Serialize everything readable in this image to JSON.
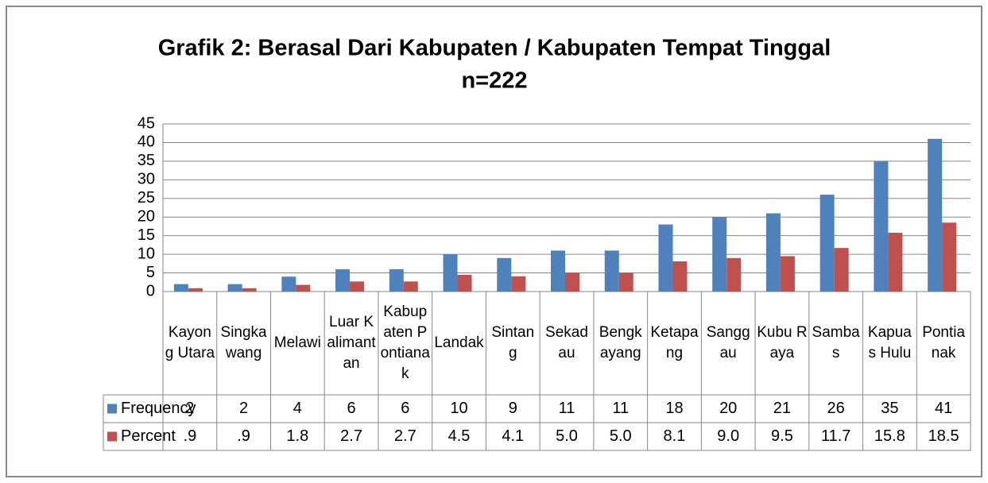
{
  "chart_data": {
    "type": "bar",
    "title": "Grafik 2: Berasal Dari Kabupaten / Kabupaten Tempat Tinggal",
    "subtitle": "n=222",
    "categories": [
      "Kayong Utara",
      "Singkawang",
      "Melawi",
      "Luar Kalimantan",
      "Kabupaten Pontianak",
      "Landak",
      "Sintang",
      "Sekadau",
      "Bengkayang",
      "Ketapang",
      "Sanggau",
      "Kubu Raya",
      "Sambas",
      "Kapuas Hulu",
      "Pontianak"
    ],
    "series": [
      {
        "name": "Frequency",
        "color": "#4f81bd",
        "values": [
          2,
          2,
          4,
          6,
          6,
          10,
          9,
          11,
          11,
          18,
          20,
          21,
          26,
          35,
          41
        ]
      },
      {
        "name": "Percent",
        "color": "#c0504d",
        "values": [
          0.9,
          0.9,
          1.8,
          2.7,
          2.7,
          4.5,
          4.1,
          5.0,
          5.0,
          8.1,
          9.0,
          9.5,
          11.7,
          15.8,
          18.5
        ],
        "value_labels": [
          ".9",
          ".9",
          "1.8",
          "2.7",
          "2.7",
          "4.5",
          "4.1",
          "5.0",
          "5.0",
          "8.1",
          "9.0",
          "9.5",
          "11.7",
          "15.8",
          "18.5"
        ]
      }
    ],
    "ylim": [
      0,
      45
    ],
    "yticks": [
      0,
      5,
      10,
      15,
      20,
      25,
      30,
      35,
      40,
      45
    ],
    "grid": true,
    "data_table": true
  }
}
